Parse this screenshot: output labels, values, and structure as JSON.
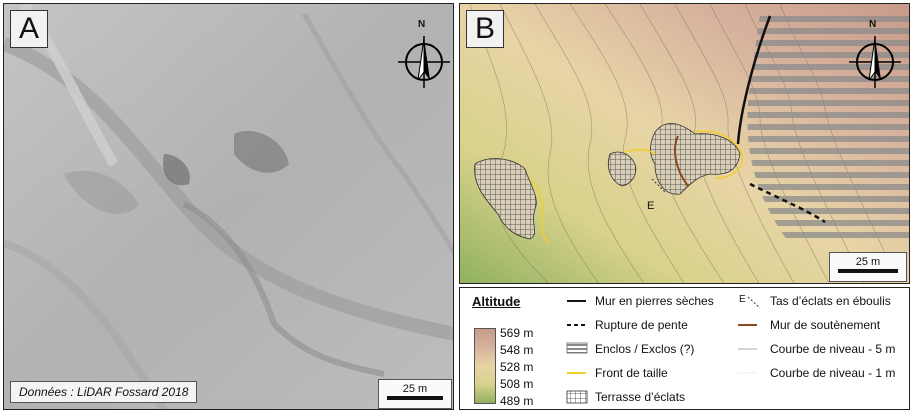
{
  "panel_a": {
    "letter": "A",
    "source_text": "Données : LiDAR Fossard 2018",
    "scale_label": "25 m",
    "north_label": "N"
  },
  "panel_b": {
    "letter": "B",
    "scale_label": "25 m",
    "north_label": "N",
    "feature_label_e": "E"
  },
  "legend": {
    "altitude_title": "Altitude",
    "altitude_ticks": [
      "569 m",
      "548 m",
      "528 m",
      "508 m",
      "489 m"
    ],
    "items": [
      {
        "label": "Mur en pierres sèches"
      },
      {
        "label": "Rupture de pente"
      },
      {
        "label": "Enclos / Exclos (?)"
      },
      {
        "label": "Front de taille"
      },
      {
        "label": "Terrasse d’éclats"
      },
      {
        "label": "Tas d’éclats en éboulis",
        "symbol_text": "E"
      },
      {
        "label": "Mur de soutènement"
      },
      {
        "label": "Courbe de niveau - 5 m"
      },
      {
        "label": "Courbe de niveau - 1 m"
      }
    ]
  },
  "colors": {
    "front_de_taille": "#f2cf2a",
    "mur_soutenement": "#8a4a1c",
    "enclos_stripes": "#8a8a8a",
    "alt_high": "#c89a8a",
    "alt_low": "#8fb060"
  }
}
